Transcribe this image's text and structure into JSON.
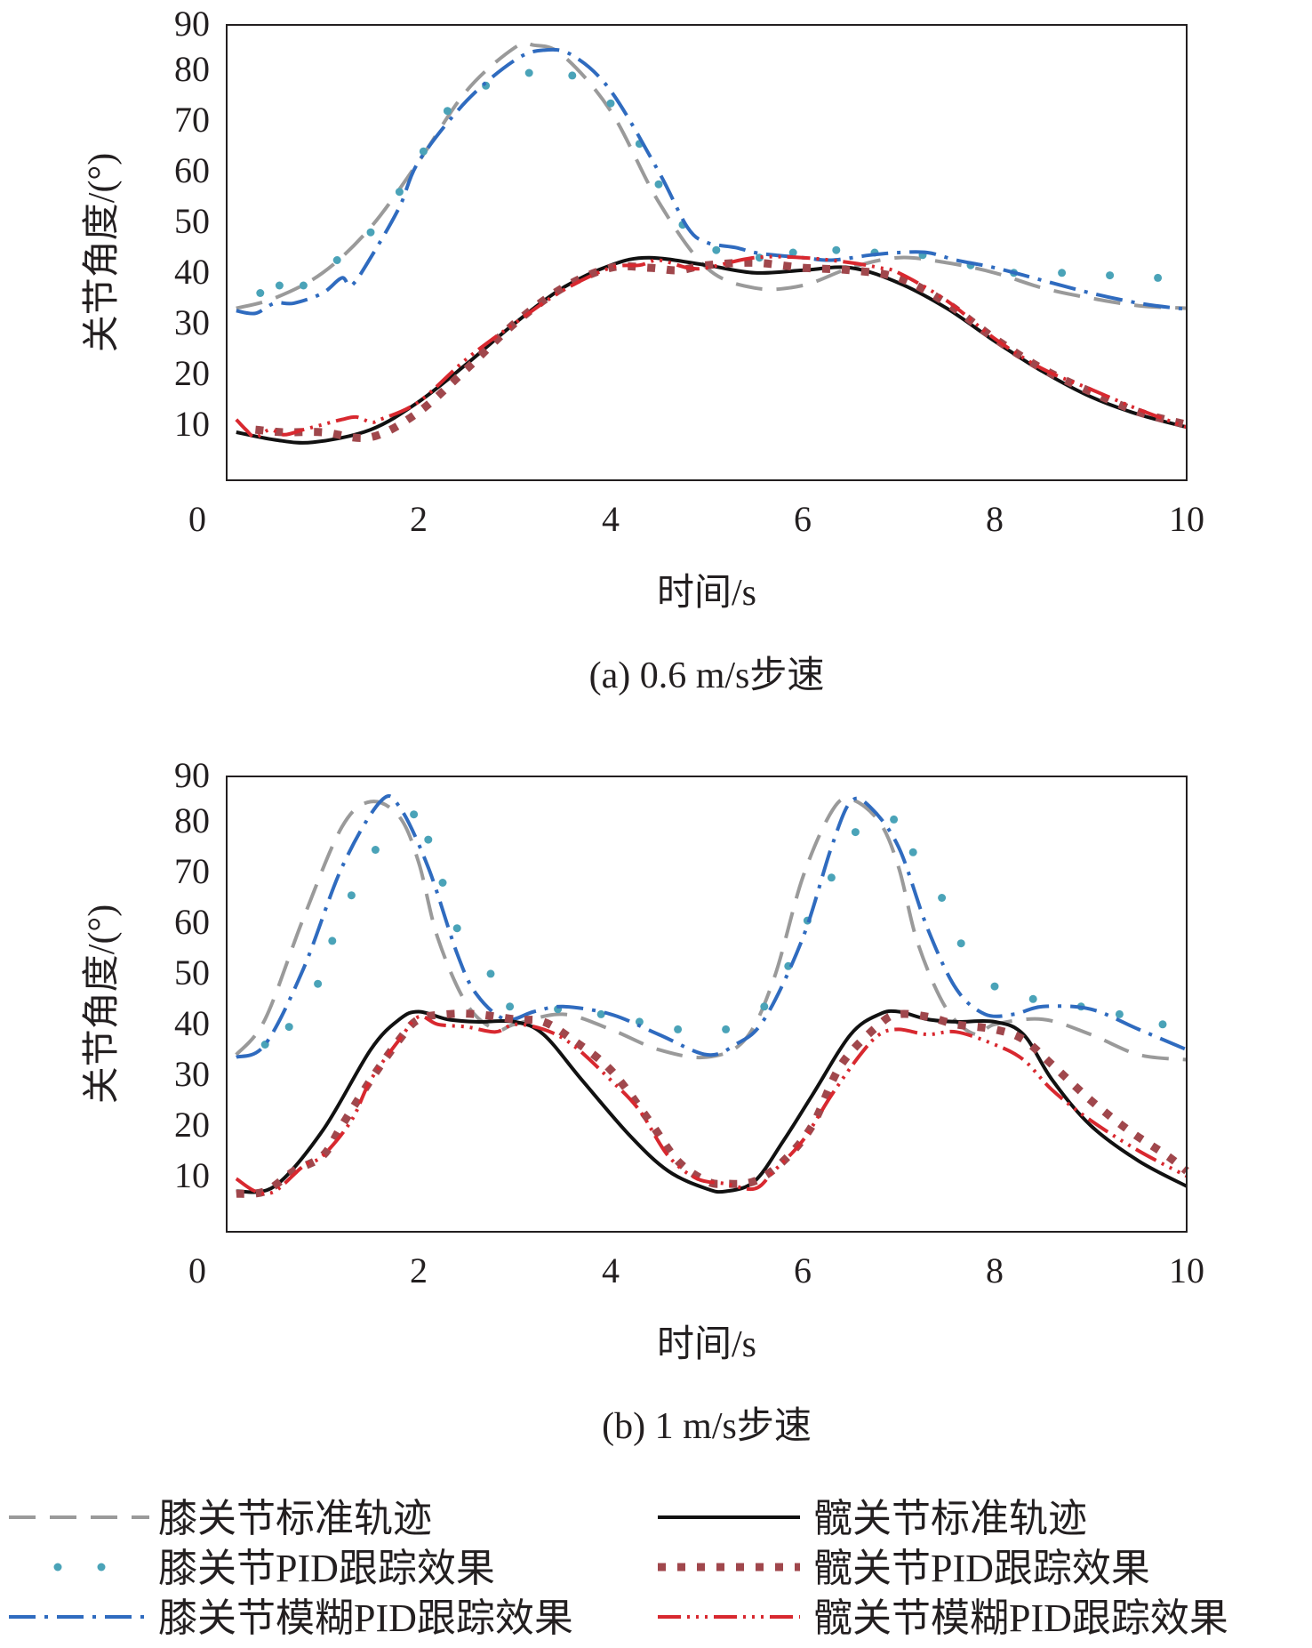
{
  "colors": {
    "knee_std": "#9a9a9a",
    "knee_pid": "#4aa3b8",
    "knee_fuzzy": "#2f6bbf",
    "hip_std": "#111111",
    "hip_pid": "#a0474c",
    "hip_fuzzy": "#d8282f",
    "axis": "#231f20"
  },
  "legend": {
    "knee_std": "膝关节标准轨迹",
    "knee_pid": "膝关节PID跟踪效果",
    "knee_fuzzy": "膝关节模糊PID跟踪效果",
    "hip_std": "髋关节标准轨迹",
    "hip_pid": "髋关节PID跟踪效果",
    "hip_fuzzy": "髋关节模糊PID跟踪效果"
  },
  "chart_data": [
    {
      "type": "line",
      "caption": "(a) 0.6 m/s步速",
      "xlabel": "时间/s",
      "ylabel": "关节角度/(°)",
      "xlim": [
        0,
        10
      ],
      "ylim": [
        0,
        90
      ],
      "xticks": [
        0,
        2,
        4,
        6,
        8,
        10
      ],
      "yticks": [
        10,
        20,
        30,
        40,
        50,
        60,
        70,
        80,
        90
      ],
      "series": [
        {
          "key": "knee_std",
          "name": "膝关节标准轨迹",
          "x": [
            0.1,
            0.5,
            1.0,
            1.5,
            2.0,
            2.5,
            3.0,
            3.2,
            3.5,
            4.0,
            4.5,
            5.0,
            5.5,
            6.0,
            6.5,
            7.0,
            7.5,
            8.0,
            8.5,
            9.0,
            9.5,
            10.0
          ],
          "y": [
            34,
            36,
            41,
            50,
            63,
            77,
            85.5,
            86,
            84,
            73,
            55,
            42,
            38,
            38.5,
            42,
            44,
            43,
            41,
            38,
            36,
            34.5,
            34
          ]
        },
        {
          "key": "knee_pid",
          "name": "膝关节PID跟踪效果",
          "x": [
            0.35,
            0.55,
            0.8,
            1.15,
            1.5,
            1.8,
            2.05,
            2.3,
            2.7,
            3.15,
            3.6,
            4.0,
            4.3,
            4.5,
            4.75,
            5.1,
            5.55,
            5.9,
            6.35,
            6.75,
            7.25,
            7.75,
            8.2,
            8.7,
            9.2,
            9.7
          ],
          "y": [
            37,
            38.5,
            38.5,
            43.5,
            49,
            57,
            65,
            73,
            78,
            80.5,
            80,
            74.5,
            66.5,
            58.5,
            50.5,
            45.5,
            44,
            45,
            45.5,
            45,
            44.5,
            42.5,
            41,
            41,
            40.5,
            40
          ]
        },
        {
          "key": "knee_fuzzy",
          "name": "膝关节模糊PID跟踪效果",
          "x": [
            0.1,
            0.3,
            0.5,
            0.7,
            1.0,
            1.2,
            1.3,
            1.5,
            1.8,
            2.0,
            2.5,
            3.0,
            3.3,
            3.6,
            4.0,
            4.5,
            4.8,
            5.0,
            5.3,
            5.5,
            5.7,
            6.0,
            6.3,
            6.7,
            7.0,
            7.3,
            7.6,
            8.0,
            8.5,
            9.0,
            9.5,
            9.9,
            10.0
          ],
          "y": [
            33.5,
            33,
            35,
            35,
            37,
            40,
            38.5,
            44,
            54,
            63,
            75,
            83,
            85,
            84,
            77,
            61,
            50,
            47,
            46,
            45,
            44.5,
            44,
            43.5,
            44.5,
            45,
            45,
            43.5,
            42,
            39.5,
            37,
            35,
            34,
            34
          ]
        },
        {
          "key": "hip_std",
          "name": "髋关节标准轨迹",
          "x": [
            0.1,
            0.5,
            0.9,
            1.5,
            2.0,
            2.5,
            3.0,
            3.5,
            4.0,
            4.4,
            5.0,
            5.5,
            6.0,
            6.5,
            7.0,
            7.5,
            8.0,
            8.5,
            9.0,
            9.5,
            10.0
          ],
          "y": [
            9.5,
            8,
            7.5,
            10,
            15.5,
            23,
            31,
            38,
            42.5,
            44,
            42.5,
            41,
            41.5,
            42,
            39,
            34,
            27.5,
            21.5,
            16.5,
            13,
            10.5
          ]
        },
        {
          "key": "hip_pid",
          "name": "髋关节PID跟踪效果",
          "x": [
            0.3,
            0.6,
            1.0,
            1.5,
            2.0,
            2.5,
            3.0,
            3.5,
            4.0,
            4.4,
            4.7,
            5.0,
            5.5,
            6.0,
            6.5,
            7.0,
            7.5,
            8.0,
            8.5,
            9.0,
            9.5,
            10.0
          ],
          "y": [
            10,
            9.5,
            9.5,
            8.5,
            13.5,
            22,
            31,
            38,
            42,
            42,
            41.5,
            42.5,
            43,
            42,
            41.5,
            40,
            35,
            28,
            22,
            17.5,
            13.5,
            11
          ]
        },
        {
          "key": "hip_fuzzy",
          "name": "髋关节模糊PID跟踪效果",
          "x": [
            0.1,
            0.2,
            0.3,
            0.45,
            0.6,
            0.8,
            1.0,
            1.2,
            1.35,
            1.5,
            1.6,
            2.0,
            2.5,
            3.0,
            3.5,
            4.0,
            4.3,
            4.5,
            4.8,
            5.0,
            5.5,
            6.0,
            6.5,
            6.8,
            7.0,
            7.5,
            8.0,
            8.5,
            9.0,
            9.5,
            10.0
          ],
          "y": [
            12,
            10,
            8.5,
            10,
            9,
            10,
            11,
            12,
            12.5,
            11.5,
            12,
            15.5,
            24,
            31,
            37.5,
            42,
            42.5,
            43.5,
            42,
            42,
            44,
            44,
            43,
            42,
            41,
            35.5,
            28,
            22,
            18,
            14,
            10.5
          ]
        }
      ]
    },
    {
      "type": "line",
      "caption": "(b) 1 m/s步速",
      "xlabel": "时间/s",
      "ylabel": "关节角度/(°)",
      "xlim": [
        0,
        10
      ],
      "ylim": [
        0,
        90
      ],
      "xticks": [
        0,
        2,
        4,
        6,
        8,
        10
      ],
      "yticks": [
        10,
        20,
        30,
        40,
        50,
        60,
        70,
        80,
        90
      ],
      "series": [
        {
          "key": "knee_std",
          "name": "膝关节标准轨迹",
          "x": [
            0.1,
            0.4,
            0.8,
            1.2,
            1.5,
            1.8,
            2.0,
            2.2,
            2.5,
            2.8,
            3.0,
            3.5,
            4.0,
            4.5,
            5.0,
            5.4,
            5.7,
            6.0,
            6.3,
            6.5,
            6.8,
            7.0,
            7.2,
            7.5,
            7.8,
            8.0,
            8.5,
            9.0,
            9.5,
            10.0
          ],
          "y": [
            35,
            42,
            62,
            80,
            85,
            82,
            73,
            58,
            45,
            40,
            41,
            43,
            40,
            36,
            34.5,
            38,
            50,
            70,
            83,
            85.5,
            81,
            72,
            57,
            44,
            39,
            41,
            42,
            39,
            35,
            34
          ]
        },
        {
          "key": "knee_pid",
          "name": "膝关节PID跟踪效果",
          "x": [
            0.4,
            0.65,
            0.95,
            1.1,
            1.3,
            1.55,
            1.95,
            2.1,
            2.25,
            2.4,
            2.75,
            2.95,
            3.45,
            3.9,
            4.3,
            4.7,
            5.2,
            5.6,
            5.85,
            6.05,
            6.3,
            6.55,
            6.95,
            7.15,
            7.45,
            7.65,
            8.0,
            8.4,
            8.9,
            9.3,
            9.75
          ],
          "y": [
            37,
            40.5,
            49,
            57.5,
            66.5,
            75.5,
            82.5,
            77.5,
            69,
            60,
            51,
            44.5,
            44,
            43,
            41.5,
            40,
            40,
            44.5,
            52.5,
            61.5,
            70,
            79,
            81.5,
            75,
            66,
            57,
            48.5,
            46,
            44.5,
            43,
            41
          ]
        },
        {
          "key": "knee_fuzzy",
          "name": "膝关节模糊PID跟踪效果",
          "x": [
            0.1,
            0.4,
            0.8,
            1.2,
            1.6,
            1.8,
            2.1,
            2.4,
            2.6,
            2.9,
            3.2,
            3.5,
            4.0,
            4.5,
            5.0,
            5.3,
            5.6,
            6.0,
            6.3,
            6.5,
            6.7,
            7.0,
            7.3,
            7.6,
            7.9,
            8.2,
            8.5,
            9.0,
            9.5,
            10.0
          ],
          "y": [
            34.5,
            37,
            52,
            72,
            85,
            84,
            72,
            55,
            47,
            42,
            43.5,
            44.5,
            43,
            39,
            35,
            37,
            42,
            58,
            76,
            85,
            84,
            76,
            60,
            48,
            43,
            43,
            44.5,
            44,
            40,
            36
          ]
        },
        {
          "key": "hip_std",
          "name": "髋关节标准轨迹",
          "x": [
            0.1,
            0.5,
            1.0,
            1.5,
            1.8,
            2.0,
            2.3,
            2.6,
            3.0,
            3.3,
            3.7,
            4.2,
            4.6,
            5.0,
            5.2,
            5.5,
            5.8,
            6.1,
            6.5,
            6.8,
            7.0,
            7.3,
            7.6,
            8.0,
            8.3,
            8.6,
            9.0,
            9.5,
            10.0
          ],
          "y": [
            8,
            9,
            20,
            36,
            42,
            43.5,
            42,
            41.5,
            41.5,
            39,
            30,
            19,
            12,
            8.5,
            8,
            10,
            18,
            27,
            39,
            43,
            43.5,
            42,
            41.5,
            41.5,
            39,
            30,
            21,
            14,
            9
          ]
        },
        {
          "key": "hip_pid",
          "name": "髋关节PID跟踪效果",
          "x": [
            0.1,
            0.4,
            0.7,
            1.0,
            1.2,
            1.5,
            1.8,
            2.0,
            2.3,
            2.6,
            3.0,
            3.3,
            3.6,
            4.0,
            4.4,
            4.7,
            5.0,
            5.2,
            5.5,
            5.8,
            6.1,
            6.4,
            6.8,
            7.0,
            7.3,
            7.6,
            8.0,
            8.3,
            8.6,
            9.0,
            9.4,
            9.8,
            10.0
          ],
          "y": [
            7.5,
            8,
            12,
            15,
            21,
            30,
            38,
            42,
            43,
            43,
            42,
            41.5,
            38,
            32,
            22,
            14,
            10,
            9.5,
            10,
            14,
            21,
            33,
            41,
            43,
            42.5,
            41,
            40,
            38,
            33,
            26,
            20,
            15,
            12
          ]
        },
        {
          "key": "hip_fuzzy",
          "name": "髋关节模糊PID跟踪效果",
          "x": [
            0.1,
            0.3,
            0.5,
            0.8,
            1.0,
            1.3,
            1.5,
            1.8,
            2.0,
            2.2,
            2.5,
            2.8,
            3.0,
            3.3,
            3.6,
            4.0,
            4.3,
            4.6,
            4.9,
            5.2,
            5.5,
            5.7,
            6.0,
            6.3,
            6.6,
            6.8,
            7.0,
            7.3,
            7.6,
            8.0,
            8.3,
            8.6,
            9.0,
            9.5,
            10.0
          ],
          "y": [
            10.5,
            8,
            8,
            13,
            15,
            22,
            30,
            38,
            42.5,
            41,
            40.5,
            39.5,
            41,
            40,
            37,
            30,
            24,
            15,
            10.5,
            9.5,
            8.5,
            12,
            18,
            27,
            35,
            39,
            40,
            39,
            39.5,
            37,
            34,
            28,
            22,
            16,
            11
          ]
        }
      ]
    }
  ]
}
